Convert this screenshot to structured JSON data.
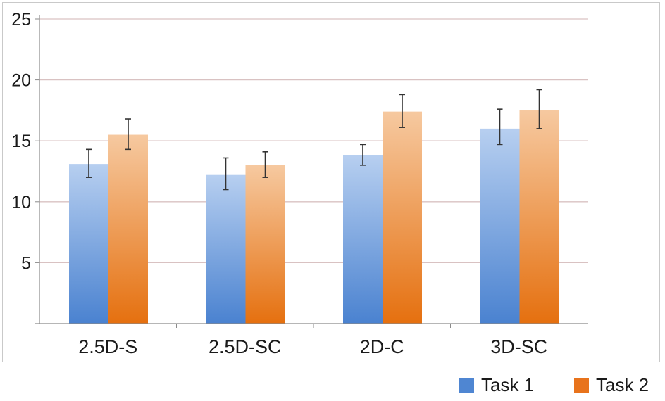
{
  "chart_data": {
    "type": "bar",
    "title": "",
    "xlabel": "",
    "ylabel": "",
    "categories": [
      "2.5D-S",
      "2.5D-SC",
      "2D-C",
      "3D-SC"
    ],
    "series": [
      {
        "name": "Task 1",
        "values": [
          13.1,
          12.2,
          13.8,
          16.0
        ],
        "err_low": [
          12.0,
          11.0,
          13.0,
          14.7
        ],
        "err_high": [
          14.3,
          13.6,
          14.7,
          17.6
        ],
        "color": "#4f86d2"
      },
      {
        "name": "Task 2",
        "values": [
          15.5,
          13.0,
          17.4,
          17.5
        ],
        "err_low": [
          14.3,
          12.0,
          16.1,
          16.0
        ],
        "err_high": [
          16.8,
          14.1,
          18.8,
          19.2
        ],
        "color": "#e8731c"
      }
    ],
    "ylim": [
      0,
      25
    ],
    "yticks": [
      5,
      10,
      15,
      20,
      25
    ],
    "grid": true,
    "legend": "bottom-right"
  }
}
